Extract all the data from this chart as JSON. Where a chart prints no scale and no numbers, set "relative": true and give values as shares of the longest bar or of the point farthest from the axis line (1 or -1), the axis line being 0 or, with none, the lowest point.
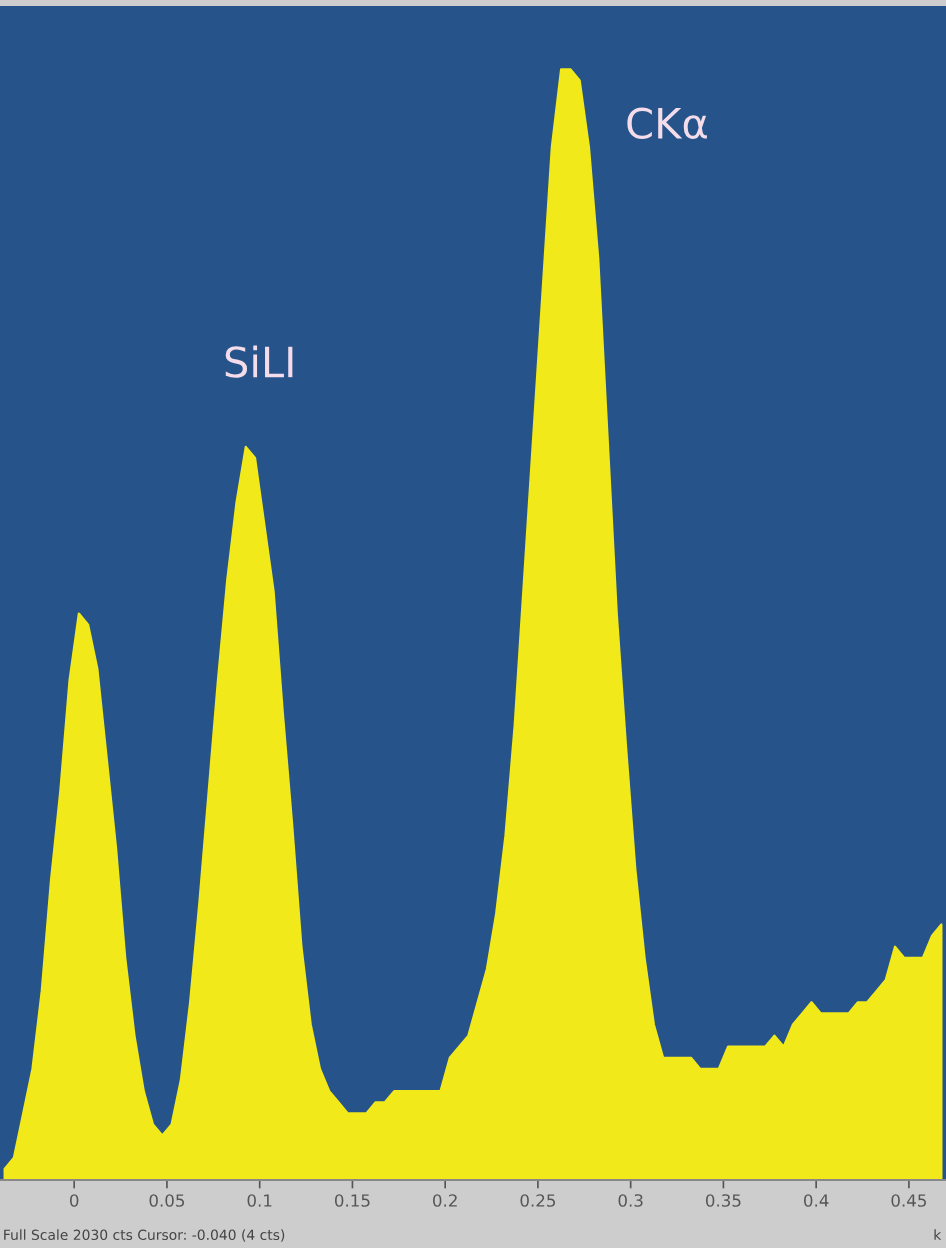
{
  "chart_data": {
    "type": "area",
    "relative": true,
    "color": "#f2e91a",
    "xlabel": "k",
    "xlim": [
      -0.04,
      0.47
    ],
    "xticks": [
      0,
      0.05,
      0.1,
      0.15,
      0.2,
      0.25,
      0.3,
      0.35,
      0.4,
      0.45
    ],
    "x": [
      -0.0375,
      -0.0325,
      -0.0275,
      -0.0225,
      -0.0175,
      -0.0125,
      -0.0075,
      -0.0025,
      0.0025,
      0.0075,
      0.0125,
      0.0175,
      0.0225,
      0.0275,
      0.0325,
      0.0375,
      0.0425,
      0.0475,
      0.0525,
      0.0575,
      0.0625,
      0.0675,
      0.0725,
      0.0775,
      0.0825,
      0.0875,
      0.0925,
      0.0975,
      0.1025,
      0.1075,
      0.1125,
      0.1175,
      0.1225,
      0.1275,
      0.1325,
      0.1375,
      0.1425,
      0.1475,
      0.1525,
      0.1575,
      0.1625,
      0.1675,
      0.1725,
      0.1775,
      0.1825,
      0.1875,
      0.1925,
      0.1975,
      0.2025,
      0.2075,
      0.2125,
      0.2175,
      0.2225,
      0.2275,
      0.2325,
      0.2375,
      0.2425,
      0.2475,
      0.2525,
      0.2575,
      0.2625,
      0.2675,
      0.2725,
      0.2775,
      0.2825,
      0.2875,
      0.2925,
      0.2975,
      0.3025,
      0.3075,
      0.3125,
      0.3175,
      0.3225,
      0.3275,
      0.3325,
      0.3375,
      0.3425,
      0.3475,
      0.3525,
      0.3575,
      0.3625,
      0.3675,
      0.3725,
      0.3775,
      0.3825,
      0.3875,
      0.3925,
      0.3975,
      0.4025,
      0.4075,
      0.4125,
      0.4175,
      0.4225,
      0.4275,
      0.4325,
      0.4375,
      0.4425,
      0.4475,
      0.4525,
      0.4575,
      0.4625,
      0.4675
    ],
    "values": [
      0.01,
      0.02,
      0.06,
      0.1,
      0.17,
      0.27,
      0.35,
      0.45,
      0.51,
      0.5,
      0.46,
      0.38,
      0.3,
      0.2,
      0.13,
      0.08,
      0.05,
      0.04,
      0.05,
      0.09,
      0.16,
      0.25,
      0.35,
      0.45,
      0.54,
      0.61,
      0.66,
      0.65,
      0.59,
      0.53,
      0.42,
      0.32,
      0.21,
      0.14,
      0.1,
      0.08,
      0.07,
      0.06,
      0.06,
      0.06,
      0.07,
      0.07,
      0.08,
      0.08,
      0.08,
      0.08,
      0.08,
      0.08,
      0.11,
      0.12,
      0.13,
      0.16,
      0.19,
      0.24,
      0.31,
      0.41,
      0.54,
      0.67,
      0.8,
      0.93,
      1.0,
      1.0,
      0.99,
      0.93,
      0.83,
      0.67,
      0.51,
      0.39,
      0.28,
      0.2,
      0.14,
      0.11,
      0.11,
      0.11,
      0.11,
      0.1,
      0.1,
      0.1,
      0.12,
      0.12,
      0.12,
      0.12,
      0.12,
      0.13,
      0.12,
      0.14,
      0.15,
      0.16,
      0.15,
      0.15,
      0.15,
      0.15,
      0.16,
      0.16,
      0.17,
      0.18,
      0.21,
      0.2,
      0.2,
      0.2,
      0.22,
      0.23
    ],
    "annotations": [
      {
        "text": "SiLI",
        "x": 0.1,
        "y": 0.66
      },
      {
        "text": "CKα",
        "x": 0.27,
        "y": 1.0
      },
      "Full Scale 2030 cts Cursor: -0.040 (4 cts)"
    ],
    "grid": false,
    "legend": false
  }
}
